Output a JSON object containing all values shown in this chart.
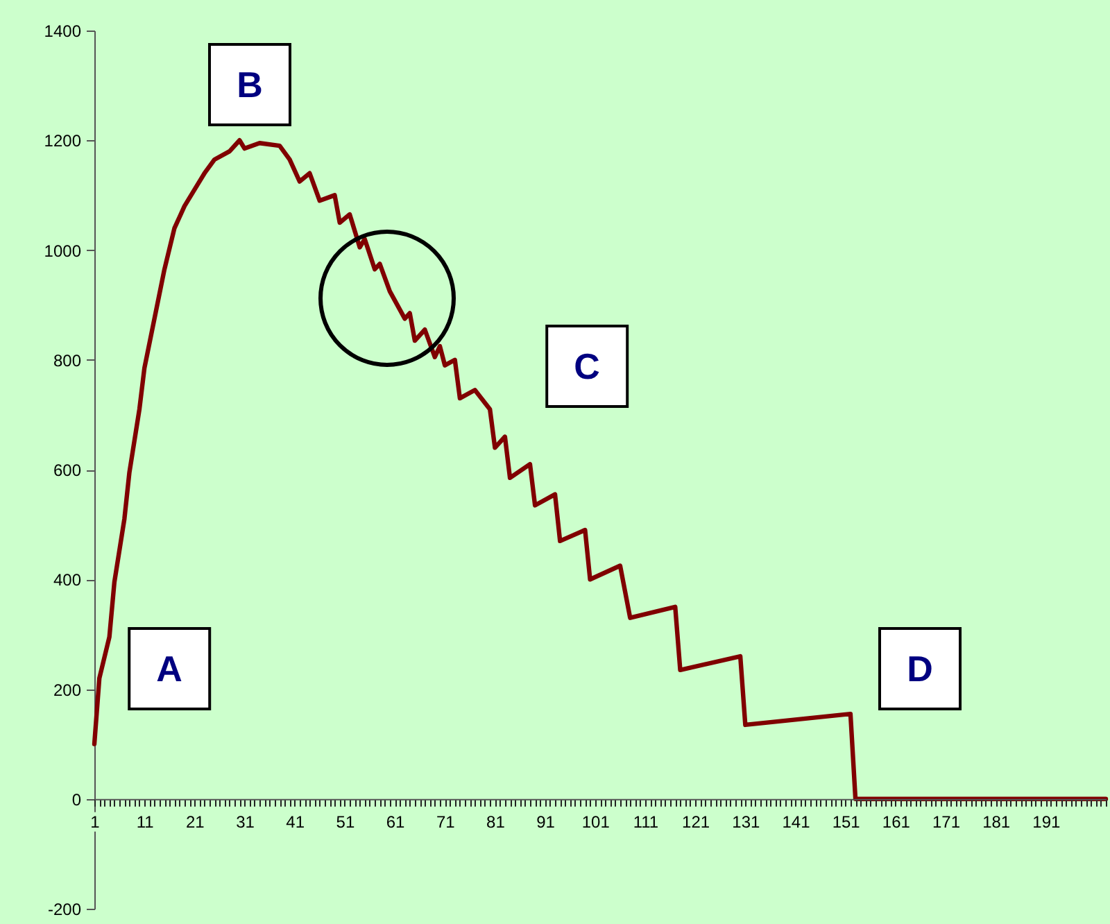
{
  "chart_data": {
    "type": "line",
    "x": [
      1,
      2,
      4,
      5,
      7,
      8,
      10,
      11,
      13,
      15,
      17,
      19,
      21,
      23,
      25,
      28,
      30,
      31,
      34,
      38,
      40,
      42,
      44,
      46,
      49,
      50,
      52,
      54,
      55,
      57,
      58,
      60,
      63,
      64,
      65,
      67,
      69,
      70,
      71,
      73,
      74,
      77,
      80,
      81,
      83,
      84,
      88,
      89,
      93,
      94,
      99,
      100,
      106,
      108,
      117,
      118,
      130,
      131,
      152,
      153,
      203
    ],
    "series": [
      {
        "color": "#800000",
        "values": [
          100,
          220,
          295,
          395,
          510,
          595,
          710,
          785,
          875,
          965,
          1040,
          1080,
          1110,
          1140,
          1165,
          1180,
          1200,
          1185,
          1195,
          1190,
          1165,
          1125,
          1140,
          1090,
          1100,
          1050,
          1065,
          1005,
          1020,
          965,
          975,
          925,
          875,
          885,
          835,
          855,
          805,
          825,
          790,
          800,
          730,
          745,
          710,
          640,
          660,
          585,
          610,
          535,
          555,
          470,
          490,
          400,
          425,
          330,
          350,
          235,
          260,
          135,
          155,
          0,
          0
        ]
      }
    ],
    "xlim": [
      1,
      203
    ],
    "ylim": [
      -200,
      1400
    ],
    "yticks": [
      -200,
      0,
      200,
      400,
      600,
      800,
      1000,
      1200,
      1400
    ],
    "xticks": [
      1,
      {
        "value": 2,
        "label": null
      },
      {
        "value": 3,
        "label": null
      },
      {
        "value": 4,
        "label": null
      },
      {
        "value": 5,
        "label": null
      },
      {
        "value": 6,
        "label": null
      },
      {
        "value": 7,
        "label": null
      },
      {
        "value": 8,
        "label": null
      },
      {
        "value": 9,
        "label": null
      },
      {
        "value": 10,
        "label": null
      },
      11,
      {
        "value": 12,
        "label": null
      },
      {
        "value": 13,
        "label": null
      },
      {
        "value": 14,
        "label": null
      },
      {
        "value": 15,
        "label": null
      },
      {
        "value": 16,
        "label": null
      },
      {
        "value": 17,
        "label": null
      },
      {
        "value": 18,
        "label": null
      },
      {
        "value": 19,
        "label": null
      },
      {
        "value": 20,
        "label": null
      },
      21,
      {
        "value": 22,
        "label": null
      },
      {
        "value": 23,
        "label": null
      },
      {
        "value": 24,
        "label": null
      },
      {
        "value": 25,
        "label": null
      },
      {
        "value": 26,
        "label": null
      },
      {
        "value": 27,
        "label": null
      },
      {
        "value": 28,
        "label": null
      },
      {
        "value": 29,
        "label": null
      },
      {
        "value": 30,
        "label": null
      },
      31,
      {
        "value": 32,
        "label": null
      },
      {
        "value": 33,
        "label": null
      },
      {
        "value": 34,
        "label": null
      },
      {
        "value": 35,
        "label": null
      },
      {
        "value": 36,
        "label": null
      },
      {
        "value": 37,
        "label": null
      },
      {
        "value": 38,
        "label": null
      },
      {
        "value": 39,
        "label": null
      },
      {
        "value": 40,
        "label": null
      },
      41,
      {
        "value": 42,
        "label": null
      },
      {
        "value": 43,
        "label": null
      },
      {
        "value": 44,
        "label": null
      },
      {
        "value": 45,
        "label": null
      },
      {
        "value": 46,
        "label": null
      },
      {
        "value": 47,
        "label": null
      },
      {
        "value": 48,
        "label": null
      },
      {
        "value": 49,
        "label": null
      },
      {
        "value": 50,
        "label": null
      },
      51,
      {
        "value": 52,
        "label": null
      },
      {
        "value": 53,
        "label": null
      },
      {
        "value": 54,
        "label": null
      },
      {
        "value": 55,
        "label": null
      },
      {
        "value": 56,
        "label": null
      },
      {
        "value": 57,
        "label": null
      },
      {
        "value": 58,
        "label": null
      },
      {
        "value": 59,
        "label": null
      },
      {
        "value": 60,
        "label": null
      },
      61,
      {
        "value": 62,
        "label": null
      },
      {
        "value": 63,
        "label": null
      },
      {
        "value": 64,
        "label": null
      },
      {
        "value": 65,
        "label": null
      },
      {
        "value": 66,
        "label": null
      },
      {
        "value": 67,
        "label": null
      },
      {
        "value": 68,
        "label": null
      },
      {
        "value": 69,
        "label": null
      },
      {
        "value": 70,
        "label": null
      },
      71,
      {
        "value": 72,
        "label": null
      },
      {
        "value": 73,
        "label": null
      },
      {
        "value": 74,
        "label": null
      },
      {
        "value": 75,
        "label": null
      },
      {
        "value": 76,
        "label": null
      },
      {
        "value": 77,
        "label": null
      },
      {
        "value": 78,
        "label": null
      },
      {
        "value": 79,
        "label": null
      },
      {
        "value": 80,
        "label": null
      },
      81,
      {
        "value": 82,
        "label": null
      },
      {
        "value": 83,
        "label": null
      },
      {
        "value": 84,
        "label": null
      },
      {
        "value": 85,
        "label": null
      },
      {
        "value": 86,
        "label": null
      },
      {
        "value": 87,
        "label": null
      },
      {
        "value": 88,
        "label": null
      },
      {
        "value": 89,
        "label": null
      },
      {
        "value": 90,
        "label": null
      },
      91,
      {
        "value": 92,
        "label": null
      },
      {
        "value": 93,
        "label": null
      },
      {
        "value": 94,
        "label": null
      },
      {
        "value": 95,
        "label": null
      },
      {
        "value": 96,
        "label": null
      },
      {
        "value": 97,
        "label": null
      },
      {
        "value": 98,
        "label": null
      },
      {
        "value": 99,
        "label": null
      },
      {
        "value": 100,
        "label": null
      },
      101,
      {
        "value": 102,
        "label": null
      },
      {
        "value": 103,
        "label": null
      },
      {
        "value": 104,
        "label": null
      },
      {
        "value": 105,
        "label": null
      },
      {
        "value": 106,
        "label": null
      },
      {
        "value": 107,
        "label": null
      },
      {
        "value": 108,
        "label": null
      },
      {
        "value": 109,
        "label": null
      },
      {
        "value": 110,
        "label": null
      },
      111,
      {
        "value": 112,
        "label": null
      },
      {
        "value": 113,
        "label": null
      },
      {
        "value": 114,
        "label": null
      },
      {
        "value": 115,
        "label": null
      },
      {
        "value": 116,
        "label": null
      },
      {
        "value": 117,
        "label": null
      },
      {
        "value": 118,
        "label": null
      },
      {
        "value": 119,
        "label": null
      },
      {
        "value": 120,
        "label": null
      },
      121,
      {
        "value": 122,
        "label": null
      },
      {
        "value": 123,
        "label": null
      },
      {
        "value": 124,
        "label": null
      },
      {
        "value": 125,
        "label": null
      },
      {
        "value": 126,
        "label": null
      },
      {
        "value": 127,
        "label": null
      },
      {
        "value": 128,
        "label": null
      },
      {
        "value": 129,
        "label": null
      },
      {
        "value": 130,
        "label": null
      },
      131,
      {
        "value": 132,
        "label": null
      },
      {
        "value": 133,
        "label": null
      },
      {
        "value": 134,
        "label": null
      },
      {
        "value": 135,
        "label": null
      },
      {
        "value": 136,
        "label": null
      },
      {
        "value": 137,
        "label": null
      },
      {
        "value": 138,
        "label": null
      },
      {
        "value": 139,
        "label": null
      },
      {
        "value": 140,
        "label": null
      },
      141,
      {
        "value": 142,
        "label": null
      },
      {
        "value": 143,
        "label": null
      },
      {
        "value": 144,
        "label": null
      },
      {
        "value": 145,
        "label": null
      },
      {
        "value": 146,
        "label": null
      },
      {
        "value": 147,
        "label": null
      },
      {
        "value": 148,
        "label": null
      },
      {
        "value": 149,
        "label": null
      },
      {
        "value": 150,
        "label": null
      },
      151,
      {
        "value": 152,
        "label": null
      },
      {
        "value": 153,
        "label": null
      },
      {
        "value": 154,
        "label": null
      },
      {
        "value": 155,
        "label": null
      },
      {
        "value": 156,
        "label": null
      },
      {
        "value": 157,
        "label": null
      },
      {
        "value": 158,
        "label": null
      },
      {
        "value": 159,
        "label": null
      },
      {
        "value": 160,
        "label": null
      },
      161,
      {
        "value": 162,
        "label": null
      },
      {
        "value": 163,
        "label": null
      },
      {
        "value": 164,
        "label": null
      },
      {
        "value": 165,
        "label": null
      },
      {
        "value": 166,
        "label": null
      },
      {
        "value": 167,
        "label": null
      },
      {
        "value": 168,
        "label": null
      },
      {
        "value": 169,
        "label": null
      },
      {
        "value": 170,
        "label": null
      },
      171,
      {
        "value": 172,
        "label": null
      },
      {
        "value": 173,
        "label": null
      },
      {
        "value": 174,
        "label": null
      },
      {
        "value": 175,
        "label": null
      },
      {
        "value": 176,
        "label": null
      },
      {
        "value": 177,
        "label": null
      },
      {
        "value": 178,
        "label": null
      },
      {
        "value": 179,
        "label": null
      },
      {
        "value": 180,
        "label": null
      },
      181,
      {
        "value": 182,
        "label": null
      },
      {
        "value": 183,
        "label": null
      },
      {
        "value": 184,
        "label": null
      },
      {
        "value": 185,
        "label": null
      },
      {
        "value": 186,
        "label": null
      },
      {
        "value": 187,
        "label": null
      },
      {
        "value": 188,
        "label": null
      },
      {
        "value": 189,
        "label": null
      },
      {
        "value": 190,
        "label": null
      },
      191,
      {
        "value": 192,
        "label": null
      },
      {
        "value": 193,
        "label": null
      },
      {
        "value": 194,
        "label": null
      },
      {
        "value": 195,
        "label": null
      },
      {
        "value": 196,
        "label": null
      },
      {
        "value": 197,
        "label": null
      },
      {
        "value": 198,
        "label": null
      },
      {
        "value": 199,
        "label": null
      },
      {
        "value": 200,
        "label": null
      },
      {
        "value": 201,
        "label": null
      },
      {
        "value": 202,
        "label": null
      },
      {
        "value": 203,
        "label": null
      }
    ],
    "annotations": [
      "A",
      "B",
      "C",
      "D"
    ],
    "grid": false,
    "marker": "none",
    "line_style": "solid"
  }
}
